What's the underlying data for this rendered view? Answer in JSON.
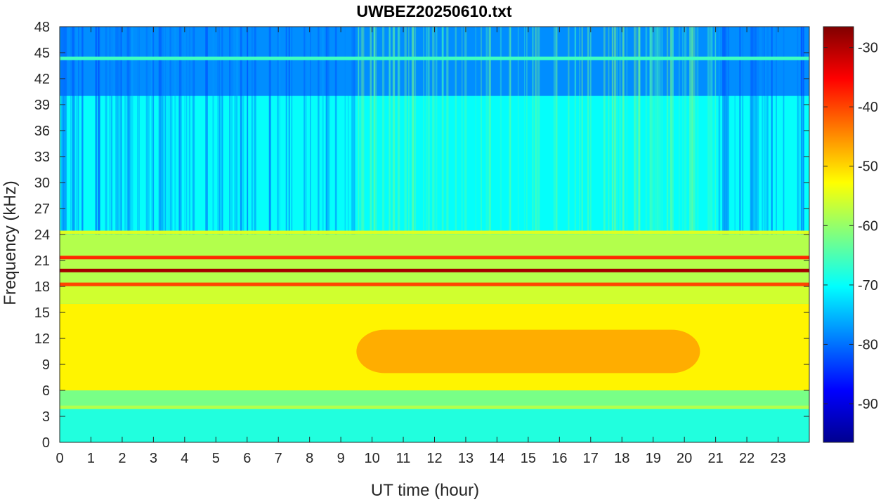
{
  "chart_data": {
    "type": "heatmap",
    "title": "UWBEZ20250610.txt",
    "xlabel": "UT time (hour)",
    "ylabel": "Frequency (kHz)",
    "xlim": [
      0,
      24
    ],
    "ylim": [
      0,
      48
    ],
    "x_ticks": [
      "0",
      "1",
      "2",
      "3",
      "4",
      "5",
      "6",
      "7",
      "8",
      "9",
      "10",
      "11",
      "12",
      "13",
      "14",
      "15",
      "16",
      "17",
      "18",
      "19",
      "20",
      "21",
      "22",
      "23"
    ],
    "y_ticks": [
      "0",
      "3",
      "6",
      "9",
      "12",
      "15",
      "18",
      "21",
      "24",
      "27",
      "30",
      "33",
      "36",
      "39",
      "42",
      "45",
      "48"
    ],
    "colorbar": {
      "range": [
        -96.5,
        -26.5
      ],
      "ticks": [
        "-90",
        "-80",
        "-70",
        "-60",
        "-50",
        "-40",
        "-30"
      ],
      "colormap": "jet"
    },
    "background_levels": [
      {
        "freq_range_khz": [
          0,
          4
        ],
        "level_db": -68
      },
      {
        "freq_range_khz": [
          4,
          6
        ],
        "level_db": -62
      },
      {
        "freq_range_khz": [
          6,
          16
        ],
        "level_db": -52
      },
      {
        "freq_range_khz": [
          16,
          18
        ],
        "level_db": -56
      },
      {
        "freq_range_khz": [
          18,
          24
        ],
        "level_db": -58
      },
      {
        "freq_range_khz": [
          24,
          40
        ],
        "level_db": -70
      },
      {
        "freq_range_khz": [
          40,
          48
        ],
        "level_db": -78
      }
    ],
    "bands": [
      {
        "freq_khz": 19.8,
        "level_db": -29
      },
      {
        "freq_khz": 21.3,
        "level_db": -38
      },
      {
        "freq_khz": 18.2,
        "level_db": -40
      },
      {
        "freq_khz": 24.2,
        "level_db": -55
      },
      {
        "freq_khz": 44.3,
        "level_db": -66
      },
      {
        "freq_khz": 4.0,
        "level_db": -58
      }
    ],
    "daytime_enhancement": {
      "time_range_h": [
        9.5,
        20.5
      ],
      "freq_range_khz": [
        8,
        13
      ],
      "level_db": -45
    }
  }
}
